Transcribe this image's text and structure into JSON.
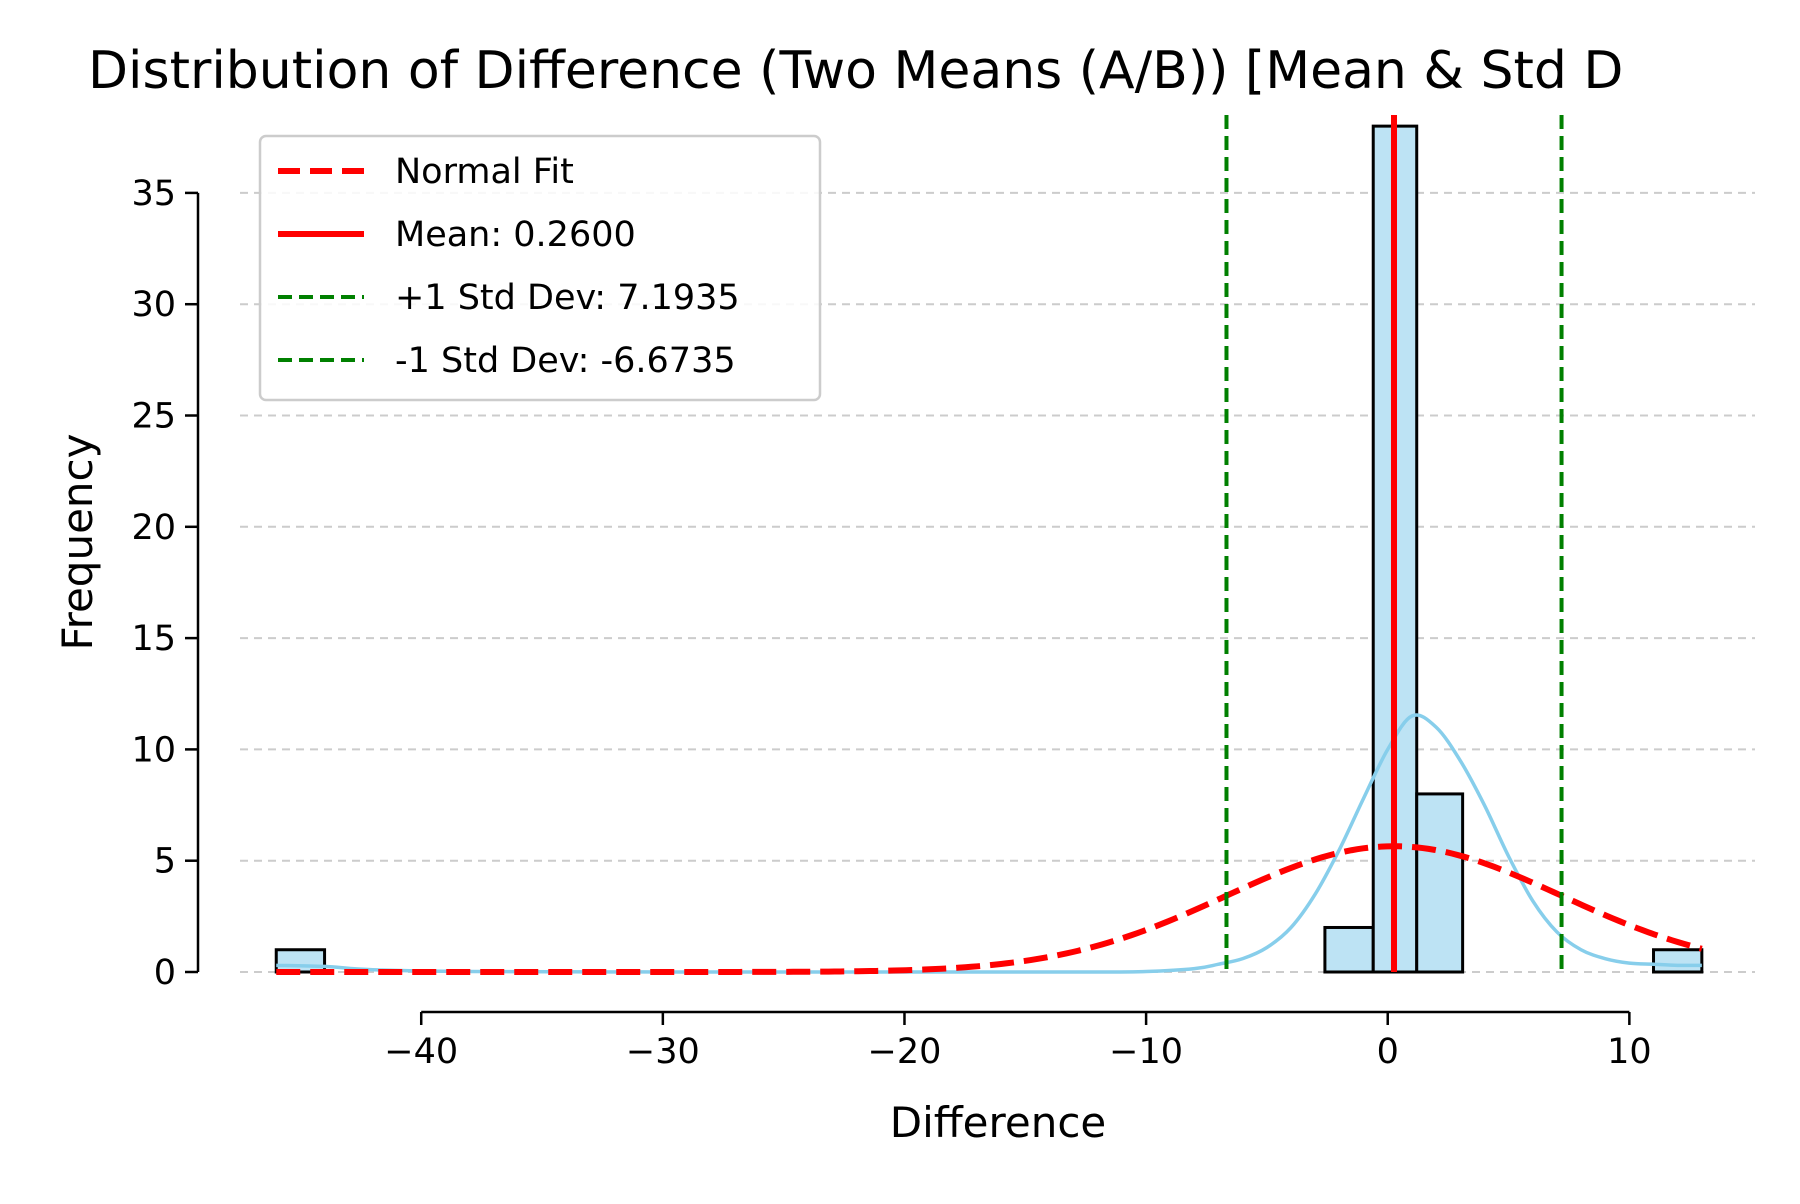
{
  "chart_data": {
    "type": "bar",
    "title": "Distribution of Difference (Two Means (A/B)) [Mean & Std D",
    "xlabel": "Difference",
    "ylabel": "Frequency",
    "xlim": [
      -47.5,
      15.2
    ],
    "ylim": [
      0,
      38.5
    ],
    "x_ticks": [
      -40,
      -30,
      -20,
      -10,
      0,
      10
    ],
    "x_tick_labels": [
      "−40",
      "−30",
      "−20",
      "−10",
      "0",
      "10"
    ],
    "y_ticks": [
      0,
      5,
      10,
      15,
      20,
      25,
      30,
      35
    ],
    "y_tick_labels": [
      "0",
      "5",
      "10",
      "15",
      "20",
      "25",
      "30",
      "35"
    ],
    "grid": "horizontal-dashed",
    "legend_position": "top-left",
    "histogram": {
      "color": "#bde3f4",
      "edge_color": "#000000",
      "bins": [
        {
          "x0": -46.0,
          "x1": -44.0,
          "count": 1
        },
        {
          "x0": -2.6,
          "x1": -0.6,
          "count": 2
        },
        {
          "x0": -0.6,
          "x1": 1.2,
          "count": 38
        },
        {
          "x0": 1.2,
          "x1": 3.1,
          "count": 8
        },
        {
          "x0": 11.0,
          "x1": 13.0,
          "count": 1
        }
      ]
    },
    "kde": {
      "color": "#87ceeb",
      "x": [
        -46,
        -44,
        -42,
        -38,
        -30,
        -20,
        -12,
        -10,
        -8,
        -7,
        -6,
        -5,
        -4,
        -3,
        -2,
        -1,
        0,
        1,
        2,
        3,
        4,
        5,
        6,
        7,
        8,
        9,
        10,
        11,
        12,
        13
      ],
      "y": [
        0.3,
        0.25,
        0.1,
        0.02,
        0,
        0,
        0,
        0.02,
        0.15,
        0.35,
        0.6,
        1.1,
        2.0,
        3.5,
        5.5,
        7.8,
        10.0,
        11.5,
        11.0,
        9.5,
        7.5,
        5.2,
        3.2,
        1.8,
        1.0,
        0.6,
        0.4,
        0.35,
        0.3,
        0.3
      ]
    },
    "series": [
      {
        "name": "Normal Fit",
        "color": "#ff0000",
        "style": "dashed",
        "kind": "normal-curve",
        "mean": 0.26,
        "std": 6.9335,
        "peak": 5.65,
        "x_range": [
          -46,
          13
        ]
      },
      {
        "name": "Mean: 0.2600",
        "color": "#ff0000",
        "style": "solid",
        "kind": "vline",
        "x": 0.26
      },
      {
        "name": "+1 Std Dev: 7.1935",
        "color": "#008000",
        "style": "dashed",
        "kind": "vline",
        "x": 7.1935
      },
      {
        "name": "-1 Std Dev: -6.6735",
        "color": "#008000",
        "style": "dashed",
        "kind": "vline",
        "x": -6.6735
      }
    ]
  }
}
